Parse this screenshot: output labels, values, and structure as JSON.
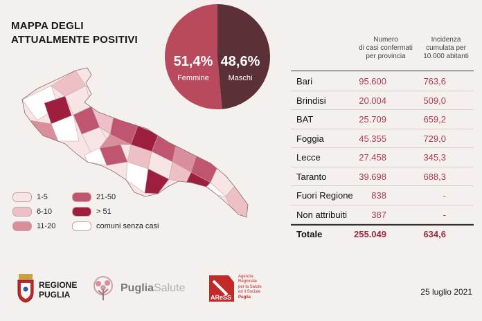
{
  "title_line1": "MAPPA DEGLI",
  "title_line2": "ATTUALMENTE POSITIVI",
  "gender": {
    "female_pct": "51,4%",
    "female_label": "Femmine",
    "male_pct": "48,6%",
    "male_label": "Maschi",
    "female_value": 51.4,
    "male_value": 48.6,
    "female_color": "#b9495d",
    "male_color": "#5b3036"
  },
  "legend": [
    {
      "label": "1-5",
      "color": "#f7e4e4"
    },
    {
      "label": "6-10",
      "color": "#ecc0c5"
    },
    {
      "label": "11-20",
      "color": "#d88e9b"
    },
    {
      "label": "21-50",
      "color": "#c05570"
    },
    {
      "label": "> 51",
      "color": "#9e1e3e"
    },
    {
      "label": "comuni senza casi",
      "color": "#ffffff"
    }
  ],
  "table": {
    "col_cases": "Numero\ndi casi confermati\nper provincia",
    "col_incidence": "Incidenza\ncumulata per\n10.000 abitanti",
    "rows": [
      {
        "name": "Bari",
        "cases": "95.600",
        "incidence": "763,6"
      },
      {
        "name": "Brindisi",
        "cases": "20.004",
        "incidence": "509,0"
      },
      {
        "name": "BAT",
        "cases": "25.709",
        "incidence": "659,2"
      },
      {
        "name": "Foggia",
        "cases": "45.355",
        "incidence": "729,0"
      },
      {
        "name": "Lecce",
        "cases": "27.458",
        "incidence": "345,3"
      },
      {
        "name": "Taranto",
        "cases": "39.698",
        "incidence": "688,3"
      },
      {
        "name": "Fuori Regione",
        "cases": "838",
        "incidence": "-"
      },
      {
        "name": "Non attribuiti",
        "cases": "387",
        "incidence": "-"
      }
    ],
    "total": {
      "name": "Totale",
      "cases": "255.049",
      "incidence": "634,6"
    }
  },
  "footer": {
    "regione_line1": "REGIONE",
    "regione_line2": "PUGLIA",
    "puglia_salute_a": "Puglia",
    "puglia_salute_b": "Salute",
    "aress_name": "AReSS",
    "aress_desc": [
      "Agenzia",
      "Regionale",
      "per la Salute",
      "ed il Sociale",
      "Puglia"
    ],
    "date": "25 luglio 2021"
  }
}
